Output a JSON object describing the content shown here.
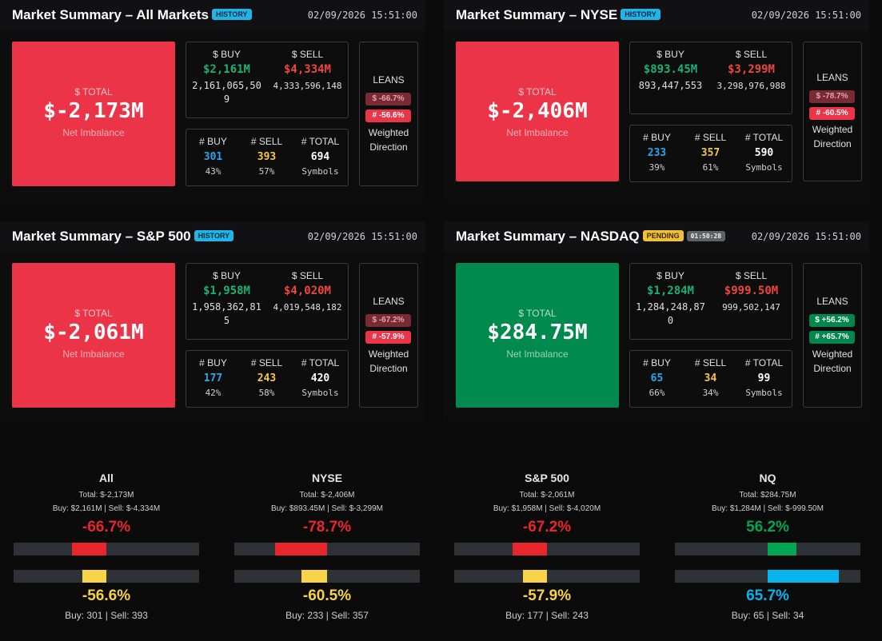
{
  "panels": [
    {
      "title": "Market Summary – All Markets",
      "badge": "HISTORY",
      "timestamp": "02/09/2026 15:51:00",
      "total_label": "$ TOTAL",
      "total_value": "$-2,173M",
      "total_sub": "Net Imbalance",
      "buy_label": "$ BUY",
      "sell_label": "$ SELL",
      "buy_value": "$2,161M",
      "sell_value": "$4,334M",
      "buy_full": "2,161,065,509",
      "sell_full": "4,333,596,148",
      "cbuy_label": "# BUY",
      "csell_label": "# SELL",
      "ctotal_label": "# TOTAL",
      "cbuy_value": "301",
      "csell_value": "393",
      "ctotal_value": "694",
      "cbuy_pct": "43%",
      "csell_pct": "57%",
      "ctotal_sub": "Symbols",
      "leans_label": "LEANS",
      "lean_dollar": "$ -66.7%",
      "lean_count": "# -56.6%",
      "leans_sub1": "Weighted",
      "leans_sub2": "Direction"
    },
    {
      "title": "Market Summary – NYSE",
      "badge": "HISTORY",
      "timestamp": "02/09/2026 15:51:00",
      "total_label": "$ TOTAL",
      "total_value": "$-2,406M",
      "total_sub": "Net Imbalance",
      "buy_label": "$ BUY",
      "sell_label": "$ SELL",
      "buy_value": "$893.45M",
      "sell_value": "$3,299M",
      "buy_full": "893,447,553",
      "sell_full": "3,298,976,988",
      "cbuy_label": "# BUY",
      "csell_label": "# SELL",
      "ctotal_label": "# TOTAL",
      "cbuy_value": "233",
      "csell_value": "357",
      "ctotal_value": "590",
      "cbuy_pct": "39%",
      "csell_pct": "61%",
      "ctotal_sub": "Symbols",
      "leans_label": "LEANS",
      "lean_dollar": "$ -78.7%",
      "lean_count": "# -60.5%",
      "leans_sub1": "Weighted",
      "leans_sub2": "Direction"
    },
    {
      "title": "Market Summary – S&P 500",
      "badge": "HISTORY",
      "timestamp": "02/09/2026 15:51:00",
      "total_label": "$ TOTAL",
      "total_value": "$-2,061M",
      "total_sub": "Net Imbalance",
      "buy_label": "$ BUY",
      "sell_label": "$ SELL",
      "buy_value": "$1,958M",
      "sell_value": "$4,020M",
      "buy_full": "1,958,362,815",
      "sell_full": "4,019,548,182",
      "cbuy_label": "# BUY",
      "csell_label": "# SELL",
      "ctotal_label": "# TOTAL",
      "cbuy_value": "177",
      "csell_value": "243",
      "ctotal_value": "420",
      "cbuy_pct": "42%",
      "csell_pct": "58%",
      "ctotal_sub": "Symbols",
      "leans_label": "LEANS",
      "lean_dollar": "$ -67.2%",
      "lean_count": "# -57.9%",
      "leans_sub1": "Weighted",
      "leans_sub2": "Direction"
    },
    {
      "title": "Market Summary – NASDAQ",
      "badge": "PENDING",
      "timer": "01:50:28",
      "timestamp": "02/09/2026 15:51:00",
      "total_label": "$ TOTAL",
      "total_value": "$284.75M",
      "total_sub": "Net Imbalance",
      "buy_label": "$ BUY",
      "sell_label": "$ SELL",
      "buy_value": "$1,284M",
      "sell_value": "$999.50M",
      "buy_full": "1,284,248,870",
      "sell_full": "999,502,147",
      "cbuy_label": "# BUY",
      "csell_label": "# SELL",
      "ctotal_label": "# TOTAL",
      "cbuy_value": "65",
      "csell_value": "34",
      "ctotal_value": "99",
      "cbuy_pct": "66%",
      "csell_pct": "34%",
      "ctotal_sub": "Symbols",
      "leans_label": "LEANS",
      "lean_dollar": "$ +56.2%",
      "lean_count": "# +65.7%",
      "leans_sub1": "Weighted",
      "leans_sub2": "Direction"
    }
  ],
  "gauges": [
    {
      "name": "All",
      "total_line": "Total: $-2,173M",
      "buysell_line": "Buy: $2,161M | Sell: $-4,334M",
      "dollar_pct": "-66.7%",
      "dollar_value": -66.7,
      "count_pct": "-56.6%",
      "count_value": -56.6,
      "footer": "Buy: 301 | Sell: 393"
    },
    {
      "name": "NYSE",
      "total_line": "Total: $-2,406M",
      "buysell_line": "Buy: $893.45M | Sell: $-3,299M",
      "dollar_pct": "-78.7%",
      "dollar_value": -78.7,
      "count_pct": "-60.5%",
      "count_value": -60.5,
      "footer": "Buy: 233 | Sell: 357"
    },
    {
      "name": "S&P 500",
      "total_line": "Total: $-2,061M",
      "buysell_line": "Buy: $1,958M | Sell: $-4,020M",
      "dollar_pct": "-67.2%",
      "dollar_value": -67.2,
      "count_pct": "-57.9%",
      "count_value": -57.9,
      "footer": "Buy: 177 | Sell: 243"
    },
    {
      "name": "NQ",
      "total_line": "Total: $284.75M",
      "buysell_line": "Buy: $1,284M | Sell: $-999.50M",
      "dollar_pct": "56.2%",
      "dollar_value": 56.2,
      "count_pct": "65.7%",
      "count_value": 65.7,
      "footer": "Buy: 65 | Sell: 34"
    }
  ],
  "colors": {
    "negative": "#ec3449",
    "positive": "#008a4d",
    "buy_dollar": "#19b274",
    "sell_dollar": "#f0453b",
    "buy_count": "#26a7f0",
    "sell_count": "#f5c842",
    "gauge_neg": "#e8262b",
    "gauge_pos": "#00a653",
    "gauge_count_neg": "#f8d347",
    "gauge_count_pos": "#06b4f0"
  }
}
